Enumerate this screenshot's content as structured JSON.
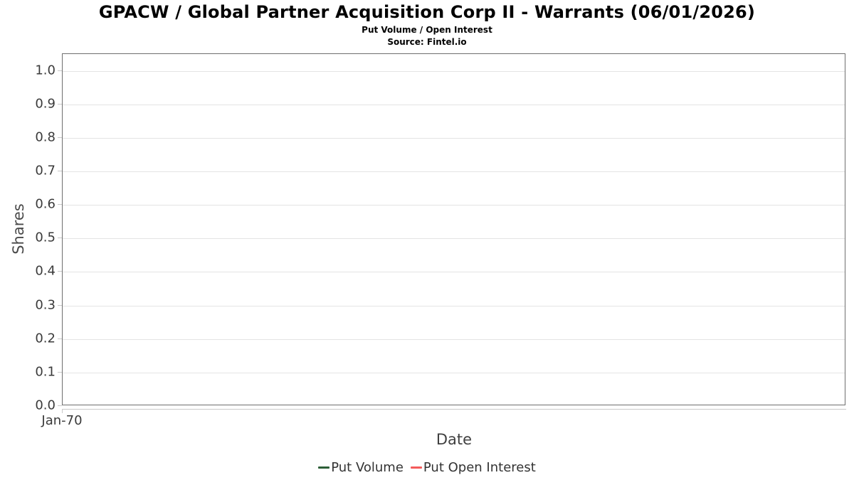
{
  "header": {
    "title": "GPACW / Global Partner Acquisition Corp II - Warrants (06/01/2026)",
    "subtitle": "Put Volume / Open Interest",
    "source": "Source: Fintel.io"
  },
  "colors": {
    "put_volume": "#2d5f38",
    "put_open_interest": "#f45b5b",
    "gridline": "#e4e4e4",
    "plot_border": "#6e6e6e",
    "axis_line": "#c9c9c9",
    "tick_text": "#3a3a3a"
  },
  "chart_data": {
    "type": "line",
    "title": "GPACW / Global Partner Acquisition Corp II - Warrants (06/01/2026)",
    "subtitle": "Put Volume / Open Interest",
    "source": "Source: Fintel.io",
    "xlabel": "Date",
    "ylabel": "Shares",
    "ylim": [
      0.0,
      1.05
    ],
    "y_ticks": [
      0.0,
      0.1,
      0.2,
      0.3,
      0.4,
      0.5,
      0.6,
      0.7,
      0.8,
      0.9,
      1.0
    ],
    "x_ticks": [
      "Jan-70"
    ],
    "grid": true,
    "legend_position": "bottom",
    "series": [
      {
        "name": "Put Volume",
        "color": "#2d5f38",
        "x": [],
        "values": []
      },
      {
        "name": "Put Open Interest",
        "color": "#f45b5b",
        "x": [],
        "values": []
      }
    ]
  }
}
